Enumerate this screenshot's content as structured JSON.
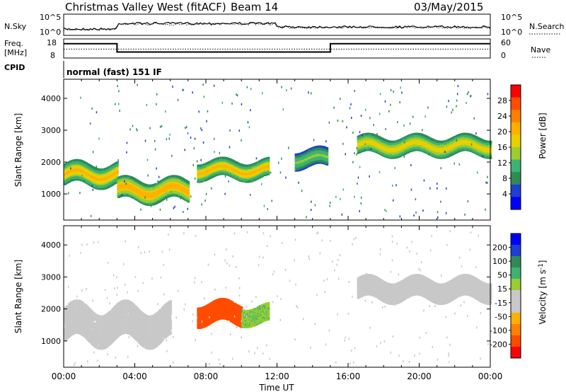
{
  "header": {
    "station": "Christmas Valley West (fitACF)",
    "beam": "Beam 14",
    "date": "03/May/2015"
  },
  "noise_panel": {
    "left_label": "N.Sky",
    "right_label": "N.Search",
    "left_ticks": [
      "10^5",
      "10^0"
    ],
    "right_ticks": [
      "10^5",
      "10^0"
    ]
  },
  "freq_panel": {
    "left_label_line1": "Freq.",
    "left_label_line2": "[MHz]",
    "right_label": "Nave",
    "left_ticks": [
      "18",
      "8"
    ],
    "right_ticks": [
      "60",
      "0"
    ],
    "freq_steps": [
      {
        "t0": 0,
        "t1": 3.0,
        "mhz": 17
      },
      {
        "t0": 3.0,
        "t1": 15.0,
        "mhz": 10.5
      },
      {
        "t0": 15.0,
        "t1": 24,
        "mhz": 17
      }
    ],
    "nave_level": 28
  },
  "cpid": {
    "label": "CPID",
    "mode": "normal (fast) 151 IF"
  },
  "chart_data": [
    {
      "type": "heatmap",
      "title": "",
      "quantity": "Power",
      "xlabel": "",
      "ylabel": "Slant Range [km]",
      "xlim": [
        0,
        24
      ],
      "ylim": [
        180,
        4600
      ],
      "yticks": [
        1000,
        2000,
        3000,
        4000
      ],
      "colorbar_label": "Power [dB]",
      "colorbar_ticks": [
        "28",
        "24",
        "20",
        "16",
        "12",
        "8",
        "4"
      ],
      "colorbar_colors": [
        "#ff0000",
        "#ff4c00",
        "#ff8000",
        "#ffb000",
        "#e8d000",
        "#9acd32",
        "#3cb371",
        "#2e8b57",
        "#1e3fd0",
        "#0000ff"
      ],
      "echo_bands": [
        {
          "t0": 0.0,
          "t1": 3.0,
          "r_center": 1600,
          "r_width": 300,
          "strength": 22
        },
        {
          "t0": 3.0,
          "t1": 7.0,
          "r_center": 1100,
          "r_width": 300,
          "strength": 24
        },
        {
          "t0": 7.5,
          "t1": 11.5,
          "r_center": 1750,
          "r_width": 250,
          "strength": 22
        },
        {
          "t0": 13.0,
          "t1": 14.8,
          "r_center": 2100,
          "r_width": 250,
          "strength": 14
        },
        {
          "t0": 16.5,
          "t1": 24.0,
          "r_center": 2500,
          "r_width": 250,
          "strength": 20
        }
      ]
    },
    {
      "type": "heatmap",
      "title": "",
      "quantity": "Velocity",
      "xlabel": "Time UT",
      "ylabel": "Slant Range [km]",
      "xlim": [
        0,
        24
      ],
      "ylim": [
        180,
        4600
      ],
      "yticks": [
        1000,
        2000,
        3000,
        4000
      ],
      "xticks": [
        "00:00",
        "04:00",
        "08:00",
        "12:00",
        "16:00",
        "20:00",
        "00:00"
      ],
      "colorbar_label": "Velocity [m s^-1]",
      "colorbar_ticks": [
        "200",
        "100",
        "50",
        "15",
        "-15",
        "-50",
        "-100",
        "-200"
      ],
      "colorbar_colors": [
        "#0000ff",
        "#1e3fd0",
        "#2e8b57",
        "#3cb371",
        "#9acd32",
        "#c8c8c8",
        "#c8c8c8",
        "#ffb000",
        "#ff8000",
        "#ff4c00",
        "#ff0000"
      ],
      "echo_bands": [
        {
          "t0": 0.0,
          "t1": 6.0,
          "r_center": 1500,
          "r_width": 500,
          "velocity": 0
        },
        {
          "t0": 7.5,
          "t1": 10.0,
          "r_center": 1850,
          "r_width": 300,
          "velocity": -180
        },
        {
          "t0": 10.0,
          "t1": 11.5,
          "r_center": 1800,
          "r_width": 250,
          "velocity": 60
        },
        {
          "t0": 16.5,
          "t1": 24.0,
          "r_center": 2600,
          "r_width": 300,
          "velocity": 0
        }
      ]
    }
  ]
}
